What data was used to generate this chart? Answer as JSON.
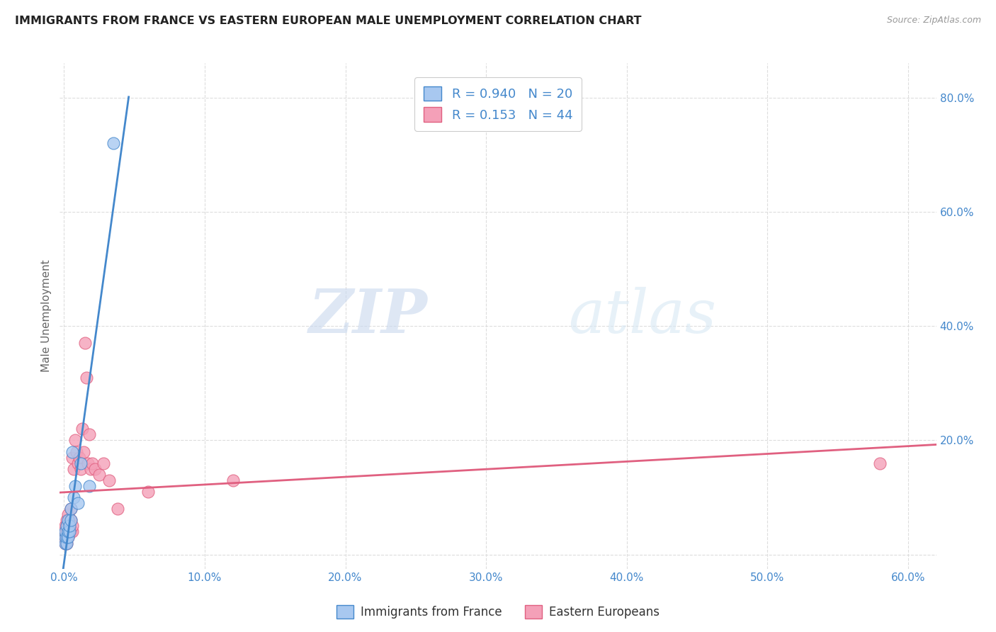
{
  "title": "IMMIGRANTS FROM FRANCE VS EASTERN EUROPEAN MALE UNEMPLOYMENT CORRELATION CHART",
  "source": "Source: ZipAtlas.com",
  "ylabel": "Male Unemployment",
  "legend_label1": "Immigrants from France",
  "legend_label2": "Eastern Europeans",
  "r1": 0.94,
  "n1": 20,
  "r2": 0.153,
  "n2": 44,
  "color_blue": "#A8C8F0",
  "color_pink": "#F4A0B8",
  "line_blue": "#4488CC",
  "line_pink": "#E06080",
  "watermark_zip": "ZIP",
  "watermark_atlas": "atlas",
  "xlim": [
    -0.003,
    0.62
  ],
  "ylim": [
    -0.025,
    0.86
  ],
  "xticks": [
    0.0,
    0.1,
    0.2,
    0.3,
    0.4,
    0.5,
    0.6
  ],
  "yticks": [
    0.0,
    0.2,
    0.4,
    0.6,
    0.8
  ],
  "france_x": [
    0.001,
    0.001,
    0.001,
    0.002,
    0.002,
    0.002,
    0.003,
    0.003,
    0.003,
    0.004,
    0.004,
    0.005,
    0.005,
    0.006,
    0.007,
    0.008,
    0.01,
    0.012,
    0.018,
    0.035
  ],
  "france_y": [
    0.02,
    0.03,
    0.04,
    0.02,
    0.03,
    0.05,
    0.03,
    0.04,
    0.06,
    0.04,
    0.05,
    0.06,
    0.08,
    0.18,
    0.1,
    0.12,
    0.09,
    0.16,
    0.12,
    0.72
  ],
  "eastern_x": [
    0.001,
    0.001,
    0.001,
    0.001,
    0.002,
    0.002,
    0.002,
    0.002,
    0.002,
    0.003,
    0.003,
    0.003,
    0.003,
    0.004,
    0.004,
    0.004,
    0.005,
    0.005,
    0.005,
    0.006,
    0.006,
    0.006,
    0.007,
    0.008,
    0.009,
    0.01,
    0.011,
    0.012,
    0.013,
    0.014,
    0.015,
    0.016,
    0.017,
    0.018,
    0.019,
    0.02,
    0.022,
    0.025,
    0.028,
    0.032,
    0.038,
    0.06,
    0.12,
    0.58
  ],
  "eastern_y": [
    0.02,
    0.03,
    0.04,
    0.05,
    0.02,
    0.03,
    0.04,
    0.05,
    0.06,
    0.03,
    0.04,
    0.05,
    0.07,
    0.04,
    0.05,
    0.06,
    0.04,
    0.06,
    0.08,
    0.04,
    0.05,
    0.17,
    0.15,
    0.2,
    0.18,
    0.16,
    0.17,
    0.15,
    0.22,
    0.18,
    0.37,
    0.31,
    0.16,
    0.21,
    0.15,
    0.16,
    0.15,
    0.14,
    0.16,
    0.13,
    0.08,
    0.11,
    0.13,
    0.16
  ]
}
